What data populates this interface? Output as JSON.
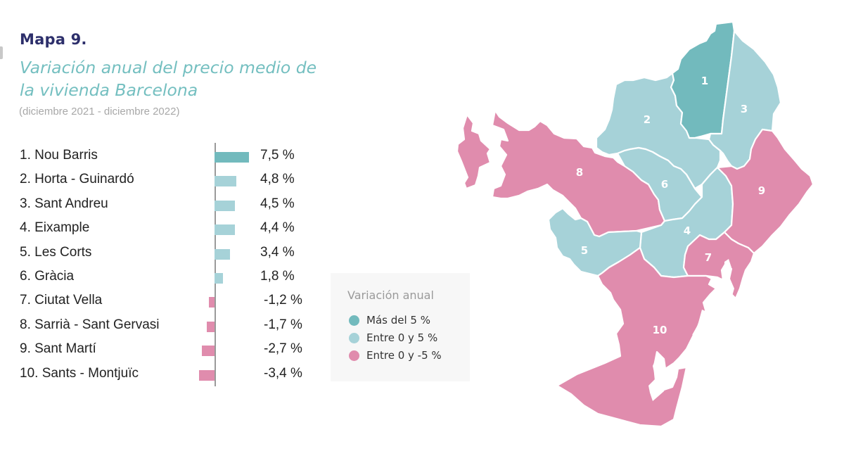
{
  "header": {
    "map_number": "Mapa 9.",
    "title": "Variación anual del precio medio de la vivienda Barcelona",
    "subtitle": "(diciembre 2021 - diciembre 2022)"
  },
  "colors": {
    "above_5": "#72babd",
    "between_0_5": "#a6d2d8",
    "between_0_neg5": "#e08cad",
    "title": "#2d2f6b",
    "subtitle_teal": "#74bfc0"
  },
  "rows": [
    {
      "label": "1. Nou Barris",
      "value": 7.5,
      "display": "7,5 %",
      "category": "above_5"
    },
    {
      "label": "2. Horta - Guinardó",
      "value": 4.8,
      "display": "4,8 %",
      "category": "between_0_5"
    },
    {
      "label": "3. Sant Andreu",
      "value": 4.5,
      "display": "4,5 %",
      "category": "between_0_5"
    },
    {
      "label": "4. Eixample",
      "value": 4.4,
      "display": "4,4 %",
      "category": "between_0_5"
    },
    {
      "label": "5. Les Corts",
      "value": 3.4,
      "display": "3,4 %",
      "category": "between_0_5"
    },
    {
      "label": "6. Gràcia",
      "value": 1.8,
      "display": "1,8 %",
      "category": "between_0_5"
    },
    {
      "label": "7. Ciutat Vella",
      "value": -1.2,
      "display": "-1,2 %",
      "category": "between_0_neg5"
    },
    {
      "label": "8. Sarrià - Sant Gervasi",
      "value": -1.7,
      "display": "-1,7 %",
      "category": "between_0_neg5"
    },
    {
      "label": "9. Sant Martí",
      "value": -2.7,
      "display": "-2,7 %",
      "category": "between_0_neg5"
    },
    {
      "label": "10. Sants - Montjuïc",
      "value": -3.4,
      "display": "-3,4 %",
      "category": "between_0_neg5"
    }
  ],
  "legend": {
    "title": "Variación anual",
    "items": [
      {
        "label": "Más del 5 %",
        "category": "above_5"
      },
      {
        "label": "Entre 0 y 5 %",
        "category": "between_0_5"
      },
      {
        "label": "Entre 0 y -5 %",
        "category": "between_0_neg5"
      }
    ]
  },
  "map": {
    "labels": [
      "1",
      "2",
      "3",
      "4",
      "5",
      "6",
      "7",
      "8",
      "9",
      "10"
    ]
  },
  "chart_data": {
    "type": "bar",
    "orientation": "horizontal",
    "title": "Mapa 9. Variación anual del precio medio de la vivienda Barcelona",
    "subtitle": "(diciembre 2021 - diciembre 2022)",
    "categories": [
      "1. Nou Barris",
      "2. Horta - Guinardó",
      "3. Sant Andreu",
      "4. Eixample",
      "5. Les Corts",
      "6. Gràcia",
      "7. Ciutat Vella",
      "8. Sarrià - Sant Gervasi",
      "9. Sant Martí",
      "10. Sants - Montjuïc"
    ],
    "values": [
      7.5,
      4.8,
      4.5,
      4.4,
      3.4,
      1.8,
      -1.2,
      -1.7,
      -2.7,
      -3.4
    ],
    "unit": "%",
    "xlabel": "",
    "ylabel": "",
    "grid": false,
    "legend": {
      "title": "Variación anual",
      "entries": [
        "Más del 5 %",
        "Entre 0 y 5 %",
        "Entre 0 y -5 %"
      ],
      "position": "center"
    },
    "annotations": "Choropleth map of Barcelona's 10 districts numbered 1-10, colored by legend category"
  }
}
